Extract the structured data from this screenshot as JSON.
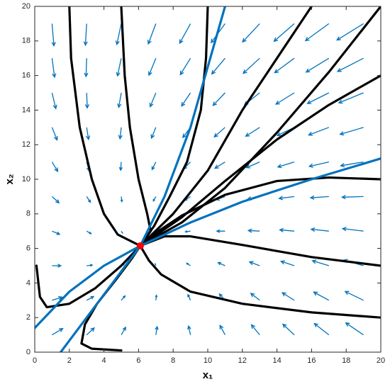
{
  "chart_data": {
    "type": "line",
    "xlabel": "x₁",
    "ylabel": "x₂",
    "xlim": [
      0,
      20
    ],
    "ylim": [
      0,
      20
    ],
    "xticks": [
      0,
      2,
      4,
      6,
      8,
      10,
      12,
      14,
      16,
      18,
      20
    ],
    "yticks": [
      0,
      2,
      4,
      6,
      8,
      10,
      12,
      14,
      16,
      18,
      20
    ],
    "quiver": {
      "color": "#0072bd",
      "x": [
        1,
        3,
        5,
        7,
        9,
        11,
        13,
        15,
        17,
        19
      ],
      "y": [
        1,
        3,
        5,
        7,
        9,
        11,
        13,
        15,
        17,
        19
      ],
      "u": [
        [
          1.7,
          1.2,
          0.7,
          0.2,
          -0.3,
          -0.8,
          -1.3,
          -1.8,
          -2.3,
          -2.8
        ],
        [
          1.6,
          1.1,
          0.6,
          0.1,
          -0.4,
          -0.9,
          -1.4,
          -1.9,
          -2.4,
          -2.9
        ],
        [
          1.4,
          0.9,
          0.4,
          -0.1,
          -0.6,
          -1.1,
          -1.6,
          -2.1,
          -2.6,
          -3.1
        ],
        [
          1.2,
          0.7,
          0.2,
          -0.3,
          -0.8,
          -1.3,
          -1.8,
          -2.3,
          -2.8,
          -3.3
        ],
        [
          1.1,
          0.6,
          0.1,
          -0.4,
          -0.9,
          -1.4,
          -1.9,
          -2.4,
          -2.9,
          -3.4
        ],
        [
          0.9,
          0.4,
          -0.1,
          -0.6,
          -1.1,
          -1.6,
          -2.1,
          -2.6,
          -3.1,
          -3.6
        ],
        [
          0.8,
          0.3,
          -0.2,
          -0.7,
          -1.2,
          -1.7,
          -2.2,
          -2.7,
          -3.2,
          -3.7
        ],
        [
          0.6,
          0.1,
          -0.4,
          -0.9,
          -1.4,
          -1.9,
          -2.4,
          -2.9,
          -3.4,
          -3.9
        ],
        [
          0.4,
          -0.1,
          -0.6,
          -1.1,
          -1.6,
          -2.1,
          -2.6,
          -3.1,
          -3.6,
          -4.1
        ],
        [
          0.3,
          -0.2,
          -0.7,
          -1.2,
          -1.7,
          -2.2,
          -2.7,
          -3.2,
          -3.7,
          -4.2
        ]
      ],
      "v": [
        [
          1.0,
          1.1,
          1.2,
          1.3,
          1.4,
          1.5,
          1.6,
          1.7,
          1.8,
          1.9
        ],
        [
          0.5,
          0.6,
          0.7,
          0.8,
          0.9,
          1.0,
          1.1,
          1.2,
          1.3,
          1.4
        ],
        [
          0,
          0.1,
          0.2,
          0.3,
          0.4,
          0.5,
          0.6,
          0.7,
          0.8,
          0.9
        ],
        [
          -0.5,
          -0.4,
          -0.3,
          -0.2,
          -0.1,
          0,
          0.1,
          0.2,
          0.3,
          0.4
        ],
        [
          -1.0,
          -0.9,
          -0.8,
          -0.7,
          -0.6,
          -0.5,
          -0.4,
          -0.3,
          -0.2,
          -0.1
        ],
        [
          -1.5,
          -1.4,
          -1.3,
          -1.2,
          -1.1,
          -1.0,
          -0.9,
          -0.8,
          -0.7,
          -0.6
        ],
        [
          -2.0,
          -1.9,
          -1.8,
          -1.7,
          -1.6,
          -1.5,
          -1.4,
          -1.3,
          -1.2,
          -1.1
        ],
        [
          -2.5,
          -2.4,
          -2.3,
          -2.2,
          -2.1,
          -2.0,
          -1.9,
          -1.8,
          -1.7,
          -1.6
        ],
        [
          -3.0,
          -2.9,
          -2.8,
          -2.7,
          -2.6,
          -2.5,
          -2.4,
          -2.3,
          -2.2,
          -2.1
        ],
        [
          -3.5,
          -3.4,
          -3.3,
          -3.2,
          -3.1,
          -3.0,
          -2.9,
          -2.8,
          -2.7,
          -2.6
        ]
      ]
    },
    "series": [
      {
        "color": "#000000",
        "x": [
          5,
          5.2,
          5.5,
          6,
          6.5,
          6.7,
          6.1
        ],
        "values": [
          20,
          16,
          13,
          10,
          8,
          7,
          6.15
        ]
      },
      {
        "color": "#000000",
        "x": [
          2,
          2.1,
          2.6,
          3.3,
          4,
          4.8,
          6.1
        ],
        "values": [
          20,
          17,
          13,
          10,
          8,
          6.8,
          6.15
        ]
      },
      {
        "color": "#000000",
        "x": [
          10,
          9.9,
          9.6,
          8.8,
          7.8,
          6.9,
          6.1
        ],
        "values": [
          20,
          17,
          14,
          11,
          9,
          7.3,
          6.15
        ]
      },
      {
        "color": "#000000",
        "x": [
          16,
          14,
          12,
          10,
          8,
          6.1
        ],
        "values": [
          20,
          17,
          14,
          10.5,
          8,
          6.15
        ]
      },
      {
        "color": "#000000",
        "x": [
          20,
          17,
          14,
          11,
          8.5,
          6.1
        ],
        "values": [
          20,
          16.2,
          12.7,
          9.5,
          7.5,
          6.15
        ]
      },
      {
        "color": "#000000",
        "x": [
          20,
          17,
          14,
          11,
          8.5,
          6.1
        ],
        "values": [
          16,
          14.3,
          12.3,
          9.9,
          7.8,
          6.15
        ]
      },
      {
        "color": "#000000",
        "x": [
          20,
          17,
          14,
          11,
          8.5,
          7,
          6.1
        ],
        "values": [
          10,
          10.1,
          9.9,
          9.1,
          7.9,
          6.9,
          6.15
        ]
      },
      {
        "color": "#000000",
        "x": [
          20,
          16,
          12,
          9,
          7.5,
          6.1
        ],
        "values": [
          5,
          5.5,
          6.2,
          6.7,
          6.7,
          6.15
        ]
      },
      {
        "color": "#000000",
        "x": [
          20,
          16,
          12,
          9,
          7.3,
          6.6,
          6.1
        ],
        "values": [
          2,
          2.3,
          2.8,
          3.5,
          4.5,
          5.3,
          6.15
        ]
      },
      {
        "color": "#000000",
        "x": [
          0.1,
          0.3,
          0.7,
          2,
          3.5,
          5,
          6.1
        ],
        "values": [
          5,
          3.2,
          2.6,
          2.8,
          3.7,
          5,
          6.15
        ]
      },
      {
        "color": "#000000",
        "x": [
          5,
          3.3,
          2.7,
          2.9,
          3.6,
          4.7,
          5.6,
          6.1
        ],
        "values": [
          0.1,
          0.2,
          0.5,
          1.6,
          2.8,
          4.2,
          5.4,
          6.15
        ]
      },
      {
        "color": "#0072bd",
        "x": [
          1.5,
          3,
          4.5,
          6.1,
          7.5,
          9,
          10,
          11
        ],
        "values": [
          0,
          2,
          4,
          6.15,
          9,
          13,
          16.5,
          20
        ]
      },
      {
        "color": "#0072bd",
        "x": [
          0,
          2,
          4,
          6.1,
          9,
          12,
          16,
          20
        ],
        "values": [
          1.4,
          3.5,
          5,
          6.15,
          7.5,
          8.7,
          10,
          11.2
        ]
      }
    ],
    "points": {
      "color": "#ff0000",
      "x": [
        6.1
      ],
      "values": [
        6.15
      ]
    }
  }
}
